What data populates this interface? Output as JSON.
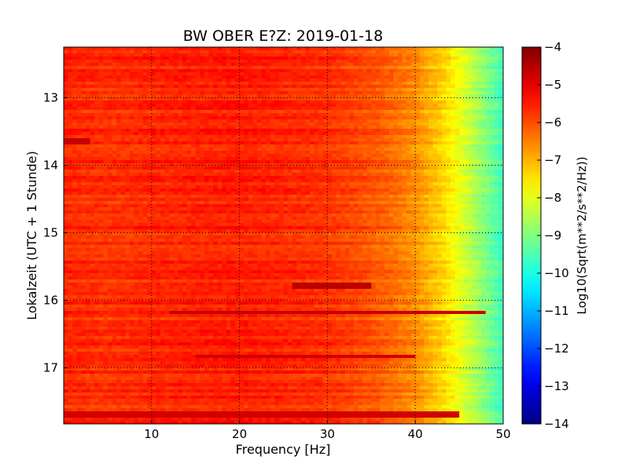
{
  "chart_data": {
    "type": "heatmap",
    "title": "BW OBER E?Z: 2019-01-18",
    "xlabel": "Frequency [Hz]",
    "ylabel": "Lokalzeit (UTC + 1 Stunde)",
    "colorbar_label": "Log10(Sqrt(m**2/s**2/Hz))",
    "xlim": [
      0,
      50
    ],
    "ylim": [
      12.25,
      17.83
    ],
    "y_inverted": true,
    "clim": [
      -14,
      -4
    ],
    "colormap": "jet",
    "grid": true,
    "x_ticks": [
      10,
      20,
      30,
      40,
      50
    ],
    "x_tick_labels": [
      "10",
      "20",
      "30",
      "40",
      "50"
    ],
    "y_ticks": [
      13,
      14,
      15,
      16,
      17
    ],
    "y_tick_labels": [
      "13",
      "14",
      "15",
      "16",
      "17"
    ],
    "colorbar_ticks": [
      -4,
      -5,
      -6,
      -7,
      -8,
      -9,
      -10,
      -11,
      -12,
      -13,
      -14
    ],
    "colorbar_tick_labels": [
      "−4",
      "−5",
      "−6",
      "−7",
      "−8",
      "−9",
      "−10",
      "−11",
      "−12",
      "−13",
      "−14"
    ],
    "frequency_profile": {
      "frequency_hz": [
        0,
        5,
        10,
        20,
        30,
        36,
        40,
        43,
        45,
        47,
        49,
        50
      ],
      "log10_amplitude": [
        -5.6,
        -5.7,
        -5.6,
        -5.5,
        -5.7,
        -6.1,
        -6.6,
        -7.3,
        -7.9,
        -8.6,
        -9.3,
        -9.6
      ]
    },
    "strong_bands": [
      {
        "time_h": 13.65,
        "freq_range_hz": [
          0,
          3
        ],
        "log10_amplitude": -4.7
      },
      {
        "time_h": 15.8,
        "freq_range_hz": [
          26,
          35
        ],
        "log10_amplitude": -4.6
      },
      {
        "time_h": 16.18,
        "freq_range_hz": [
          12,
          48
        ],
        "log10_amplitude": -4.7
      },
      {
        "time_h": 16.83,
        "freq_range_hz": [
          15,
          40
        ],
        "log10_amplitude": -4.8
      },
      {
        "time_h": 17.68,
        "freq_range_hz": [
          0,
          45
        ],
        "log10_amplitude": -4.8
      }
    ]
  }
}
